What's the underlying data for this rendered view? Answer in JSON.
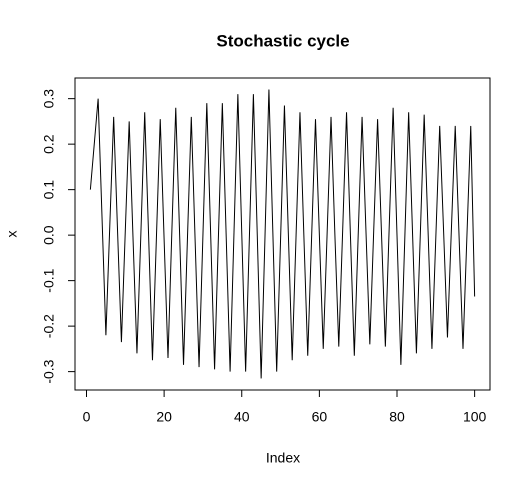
{
  "chart_data": {
    "type": "line",
    "title": "Stochastic cycle",
    "xlabel": "Index",
    "ylabel": "x",
    "color": "#000000",
    "x": [
      1,
      2,
      3,
      4,
      5,
      6,
      7,
      8,
      9,
      10,
      11,
      12,
      13,
      14,
      15,
      16,
      17,
      18,
      19,
      20,
      21,
      22,
      23,
      24,
      25,
      26,
      27,
      28,
      29,
      30,
      31,
      32,
      33,
      34,
      35,
      36,
      37,
      38,
      39,
      40,
      41,
      42,
      43,
      44,
      45,
      46,
      47,
      48,
      49,
      50,
      51,
      52,
      53,
      54,
      55,
      56,
      57,
      58,
      59,
      60,
      61,
      62,
      63,
      64,
      65,
      66,
      67,
      68,
      69,
      70,
      71,
      72,
      73,
      74,
      75,
      76,
      77,
      78,
      79,
      80,
      81,
      82,
      83,
      84,
      85,
      86,
      87,
      88,
      89,
      90,
      91,
      92,
      93,
      94,
      95,
      96,
      97,
      98,
      99,
      100
    ],
    "values": [
      0.1,
      0.2,
      0.3,
      0.04,
      -0.22,
      0.02,
      0.26,
      0.01,
      -0.235,
      0.01,
      0.25,
      -0.01,
      -0.26,
      0.0,
      0.27,
      0.0,
      -0.275,
      -0.01,
      0.255,
      -0.01,
      -0.27,
      0.01,
      0.28,
      0.0,
      -0.285,
      -0.01,
      0.26,
      -0.015,
      -0.29,
      0.0,
      0.29,
      0.0,
      -0.295,
      0.0,
      0.29,
      -0.005,
      -0.3,
      0.005,
      0.31,
      0.005,
      -0.3,
      0.005,
      0.31,
      0.0,
      -0.315,
      0.0,
      0.32,
      0.01,
      -0.3,
      -0.01,
      0.285,
      0.005,
      -0.275,
      0.0,
      0.27,
      0.0,
      -0.265,
      -0.005,
      0.255,
      0.0,
      -0.25,
      0.005,
      0.26,
      0.0,
      -0.245,
      0.01,
      0.27,
      0.0,
      -0.265,
      0.0,
      0.26,
      0.01,
      -0.24,
      0.01,
      0.255,
      0.005,
      -0.245,
      0.02,
      0.28,
      0.0,
      -0.285,
      -0.01,
      0.27,
      0.005,
      -0.26,
      0.0,
      0.265,
      0.01,
      -0.25,
      -0.005,
      0.24,
      0.01,
      -0.225,
      0.01,
      0.24,
      -0.005,
      -0.25,
      -0.005,
      0.24,
      -0.135
    ],
    "xlim": [
      -2.96,
      103.96
    ],
    "xticks": [
      0,
      20,
      40,
      60,
      80,
      100
    ],
    "ylim": [
      -0.3404,
      0.3454
    ],
    "yticks": [
      -0.3,
      -0.2,
      -0.1,
      {
        "value": 0,
        "label": "0.0"
      },
      0.1,
      0.2,
      0.3
    ]
  }
}
